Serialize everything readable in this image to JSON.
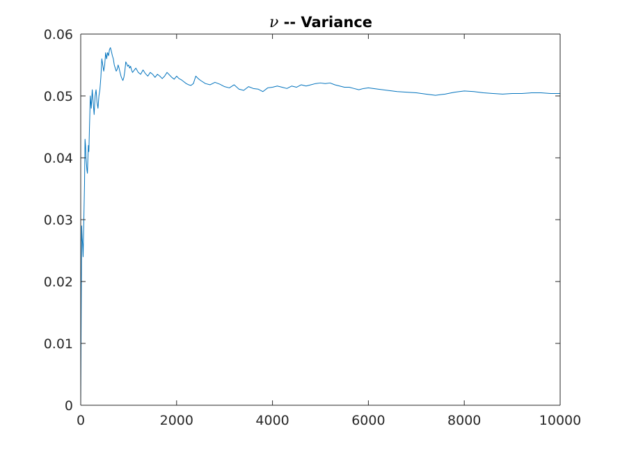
{
  "chart_data": {
    "type": "line",
    "title": {
      "symbol": "ν",
      "text": " -- Variance"
    },
    "xlabel": "",
    "ylabel": "",
    "xlim": [
      0,
      10000
    ],
    "ylim": [
      0,
      0.06
    ],
    "xticks": [
      0,
      2000,
      4000,
      6000,
      8000,
      10000
    ],
    "xtick_labels": [
      "0",
      "2000",
      "4000",
      "6000",
      "8000",
      "10000"
    ],
    "yticks": [
      0,
      0.01,
      0.02,
      0.03,
      0.04,
      0.05,
      0.06
    ],
    "ytick_labels": [
      "0",
      "0.01",
      "0.02",
      "0.03",
      "0.04",
      "0.05",
      "0.06"
    ],
    "grid": false,
    "box": true,
    "line_color": "#0072BD",
    "axis_color": "#262626",
    "series": [
      {
        "x": [
          0,
          10,
          20,
          30,
          40,
          50,
          60,
          70,
          80,
          90,
          100,
          110,
          120,
          130,
          140,
          150,
          160,
          170,
          180,
          190,
          200,
          220,
          240,
          260,
          280,
          300,
          320,
          340,
          360,
          380,
          400,
          420,
          440,
          460,
          480,
          500,
          520,
          540,
          560,
          580,
          600,
          620,
          640,
          660,
          680,
          700,
          720,
          740,
          760,
          780,
          800,
          820,
          840,
          860,
          880,
          900,
          920,
          940,
          960,
          980,
          1000,
          1020,
          1040,
          1060,
          1080,
          1100,
          1150,
          1200,
          1250,
          1300,
          1350,
          1400,
          1450,
          1500,
          1550,
          1600,
          1650,
          1700,
          1750,
          1800,
          1850,
          1900,
          1950,
          2000,
          2050,
          2100,
          2150,
          2200,
          2250,
          2300,
          2350,
          2400,
          2450,
          2500,
          2600,
          2700,
          2800,
          2900,
          3000,
          3100,
          3200,
          3300,
          3400,
          3500,
          3600,
          3700,
          3800,
          3900,
          4000,
          4100,
          4200,
          4300,
          4400,
          4500,
          4600,
          4700,
          4800,
          4900,
          5000,
          5100,
          5200,
          5300,
          5400,
          5500,
          5600,
          5700,
          5800,
          5900,
          6000,
          6200,
          6400,
          6600,
          6800,
          7000,
          7200,
          7400,
          7600,
          7800,
          8000,
          8200,
          8400,
          8600,
          8800,
          9000,
          9200,
          9400,
          9600,
          9800,
          10000
        ],
        "y": [
          0,
          0.015,
          0.029,
          0.027,
          0.026,
          0.024,
          0.028,
          0.032,
          0.036,
          0.043,
          0.042,
          0.04,
          0.039,
          0.038,
          0.0375,
          0.04,
          0.042,
          0.041,
          0.044,
          0.047,
          0.05,
          0.048,
          0.051,
          0.049,
          0.047,
          0.05,
          0.051,
          0.049,
          0.048,
          0.05,
          0.051,
          0.053,
          0.056,
          0.055,
          0.054,
          0.055,
          0.057,
          0.056,
          0.057,
          0.0565,
          0.0575,
          0.0578,
          0.0572,
          0.0565,
          0.056,
          0.055,
          0.0545,
          0.054,
          0.0543,
          0.055,
          0.0545,
          0.0538,
          0.0532,
          0.0528,
          0.0525,
          0.053,
          0.054,
          0.0555,
          0.0552,
          0.0548,
          0.055,
          0.0545,
          0.0548,
          0.0542,
          0.0538,
          0.054,
          0.0545,
          0.0538,
          0.0535,
          0.0542,
          0.0536,
          0.0532,
          0.0538,
          0.0535,
          0.053,
          0.0535,
          0.0532,
          0.0528,
          0.0532,
          0.0538,
          0.0534,
          0.053,
          0.0527,
          0.0532,
          0.0528,
          0.0526,
          0.0523,
          0.052,
          0.0518,
          0.0517,
          0.052,
          0.0532,
          0.0528,
          0.0525,
          0.052,
          0.0518,
          0.0522,
          0.0519,
          0.0515,
          0.0513,
          0.0518,
          0.0511,
          0.0509,
          0.0515,
          0.0512,
          0.0511,
          0.0507,
          0.0513,
          0.0514,
          0.0516,
          0.0514,
          0.0512,
          0.0516,
          0.0514,
          0.0518,
          0.0516,
          0.0518,
          0.052,
          0.0521,
          0.052,
          0.0521,
          0.0518,
          0.0516,
          0.0514,
          0.0514,
          0.0512,
          0.051,
          0.0512,
          0.0513,
          0.0511,
          0.0509,
          0.0507,
          0.0506,
          0.0505,
          0.0503,
          0.0501,
          0.0503,
          0.0506,
          0.0508,
          0.0507,
          0.0505,
          0.0504,
          0.0503,
          0.0504,
          0.0504,
          0.0505,
          0.0505,
          0.0504,
          0.0504
        ]
      }
    ]
  }
}
